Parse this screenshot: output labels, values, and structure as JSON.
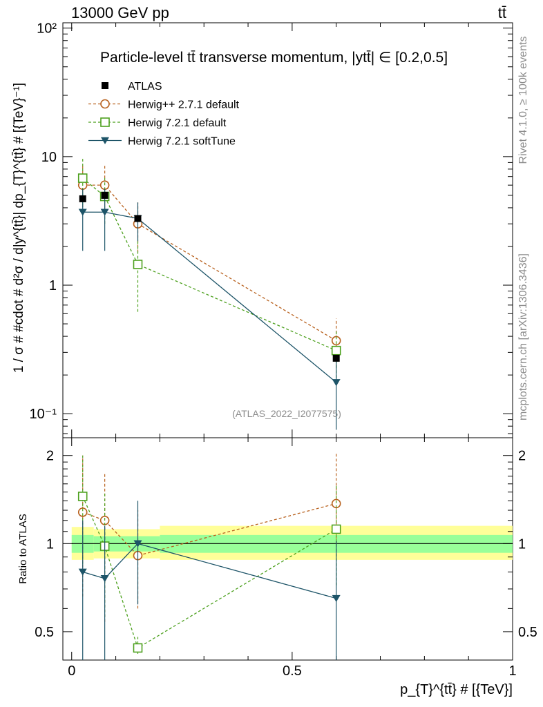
{
  "header": {
    "energy_label": "13000 GeV pp",
    "process_label": "tt̄"
  },
  "side_labels": {
    "rivet": "Rivet 4.1.0, ≥ 100k events",
    "mcplots": "mcplots.cern.ch [arXiv:1306.3436]"
  },
  "chart_data": {
    "type": "scatter",
    "title": "Particle-level tt̄ transverse momentum, |ytt̄| ∈ [0.2,0.5]",
    "analysis_tag": "(ATLAS_2022_I2077575)",
    "xlabel": "p_{T}^{tt̄} # [{TeV}]",
    "ylabel": "1 / σ # #cdot # d²σ / d|y^{tt̄}| dp_{T}^{tt̄} # [{TeV}⁻¹]",
    "ratio_ylabel": "Ratio to ATLAS",
    "xlim": [
      -0.02,
      1.0
    ],
    "ylim": [
      0.065,
      110
    ],
    "ratio_ylim": [
      0.4,
      2.3
    ],
    "y_scale": "log",
    "x_ticks": [
      "0",
      "0.5",
      "1"
    ],
    "y_ticks": [
      "10⁻¹",
      "1",
      "10",
      "10²"
    ],
    "ratio_ticks": [
      "0.5",
      "1",
      "2"
    ],
    "x": [
      0.025,
      0.075,
      0.15,
      0.6
    ],
    "bin_edges": [
      0.0,
      0.05,
      0.1,
      0.2,
      1.0
    ],
    "band_edges": [
      0.0,
      0.05,
      0.2,
      1.0
    ],
    "ratio_band_inner": [
      [
        0.93,
        1.07
      ],
      [
        0.94,
        1.06
      ],
      [
        0.93,
        1.07
      ]
    ],
    "ratio_band_outer": [
      [
        0.88,
        1.14
      ],
      [
        0.89,
        1.12
      ],
      [
        0.88,
        1.15
      ]
    ],
    "data": {
      "name": "ATLAS",
      "values": [
        4.7,
        5.0,
        3.3,
        0.27
      ]
    },
    "series": [
      {
        "name": "Herwig++ 2.7.1 default",
        "style": "dashed",
        "marker": "circle",
        "color": "#b8611e",
        "values": [
          6.0,
          6.0,
          3.0,
          0.37
        ],
        "err_low": [
          3.7,
          3.7,
          1.8,
          0.23
        ],
        "err_high": [
          8.8,
          8.8,
          4.4,
          0.55
        ],
        "ratio": [
          1.28,
          1.2,
          0.91,
          1.37
        ],
        "ratio_low": [
          0.66,
          0.54,
          0.6,
          1.0
        ],
        "ratio_high": [
          2.0,
          1.75,
          1.3,
          2.05
        ]
      },
      {
        "name": "Herwig 7.2.1 default",
        "style": "dashed",
        "marker": "square",
        "color": "#4ca01d",
        "values": [
          6.8,
          4.9,
          1.45,
          0.31
        ],
        "err_low": [
          4.2,
          3.0,
          0.62,
          0.19
        ],
        "err_high": [
          9.6,
          6.8,
          2.3,
          0.45
        ],
        "ratio": [
          1.45,
          0.98,
          0.44,
          1.12
        ],
        "ratio_low": [
          0.85,
          0.56,
          0.42,
          0.72
        ],
        "ratio_high": [
          2.0,
          1.5,
          0.48,
          1.6
        ]
      },
      {
        "name": "Herwig 7.2.1 softTune",
        "style": "solid",
        "marker": "triangle",
        "color": "#1d5468",
        "values": [
          3.7,
          3.7,
          3.3,
          0.175
        ],
        "err_low": [
          1.85,
          1.85,
          2.2,
          0.075
        ],
        "err_high": [
          5.6,
          5.6,
          4.4,
          0.28
        ],
        "ratio": [
          0.8,
          0.76,
          1.0,
          0.65
        ],
        "ratio_low": [
          0.38,
          0.38,
          0.62,
          0.38
        ],
        "ratio_high": [
          1.2,
          1.15,
          1.4,
          1.02
        ]
      }
    ]
  }
}
